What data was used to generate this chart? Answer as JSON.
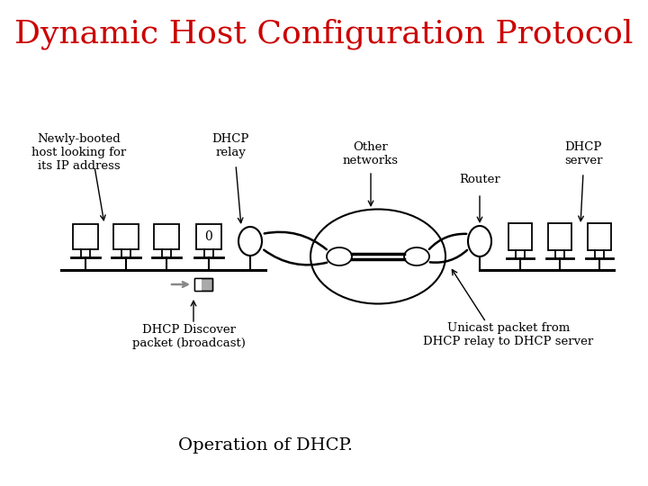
{
  "title": "Dynamic Host Configuration Protocol",
  "title_color": "#cc0000",
  "title_fontsize": 26,
  "subtitle": "Operation of DHCP.",
  "subtitle_fontsize": 14,
  "bg_color": "#ffffff",
  "labels": {
    "newly_booted": "Newly-booted\nhost looking for\nits IP address",
    "dhcp_relay": "DHCP\nrelay",
    "other_networks": "Other\nnetworks",
    "router": "Router",
    "dhcp_server": "DHCP\nserver",
    "dhcp_discover": "DHCP Discover\npacket (broadcast)",
    "unicast_packet": "Unicast packet from\nDHCP relay to DHCP server"
  }
}
